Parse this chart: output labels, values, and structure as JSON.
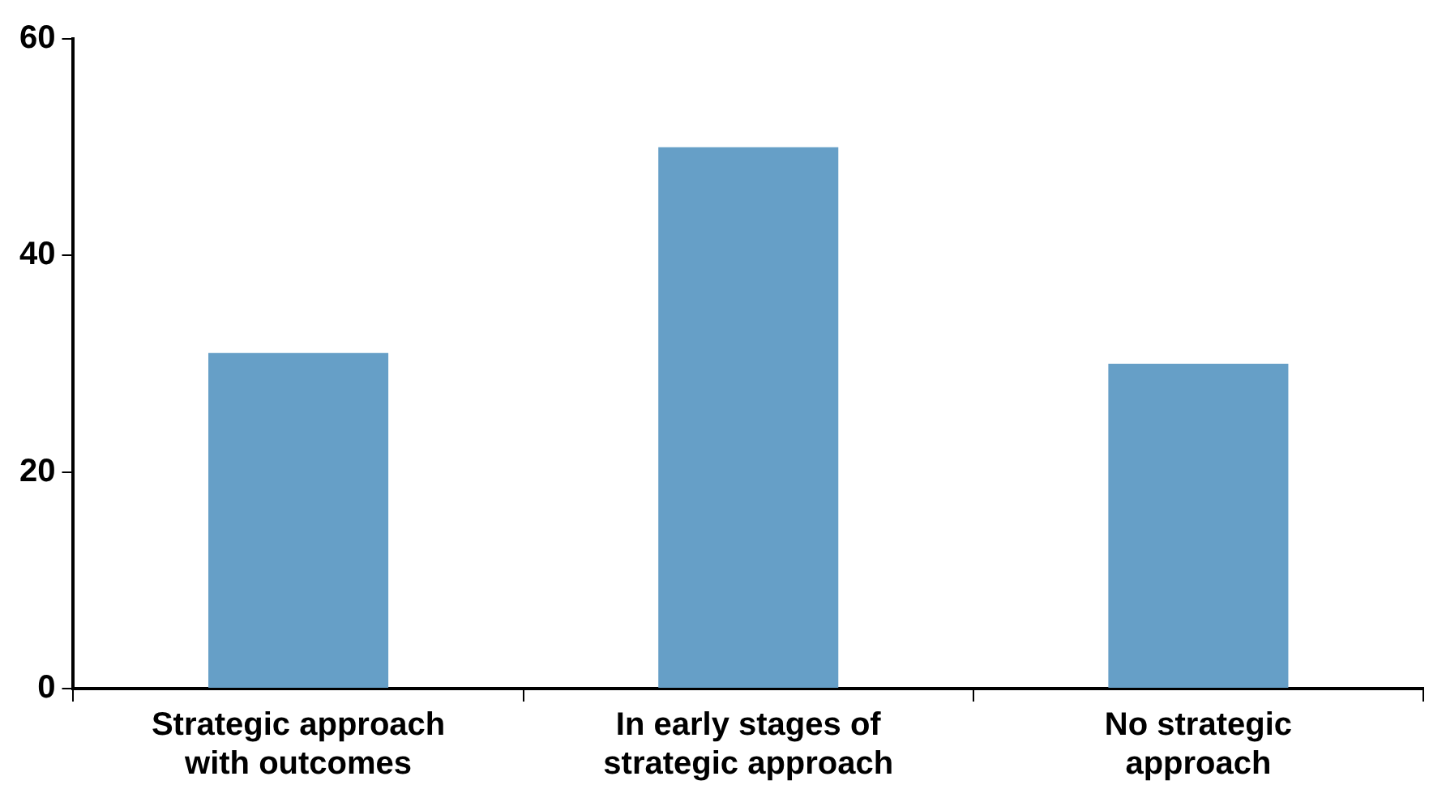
{
  "chart_data": {
    "type": "bar",
    "categories": [
      "Strategic approach with outcomes",
      "In early stages of strategic approach",
      "No strategic approach"
    ],
    "values": [
      31,
      50,
      30
    ],
    "color": "#669fc7",
    "ylim": [
      0,
      60
    ],
    "yticks": [
      0,
      20,
      40,
      60
    ],
    "grid": false,
    "legend": false
  }
}
